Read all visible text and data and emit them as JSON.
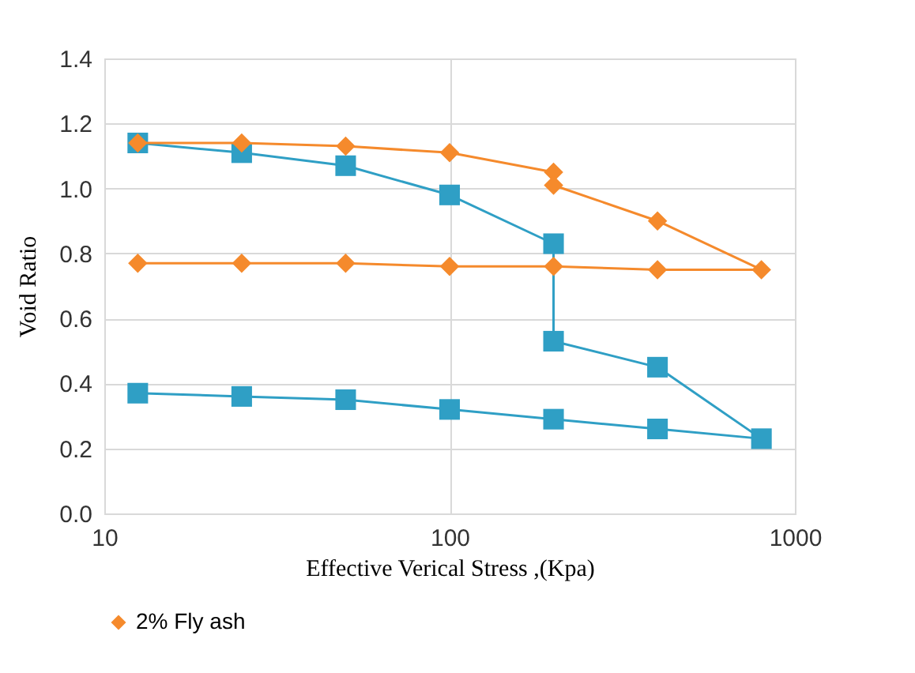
{
  "chart_data": {
    "type": "line",
    "xlabel": "Effective Verical Stress ,(Kpa)",
    "ylabel": "Void Ratio",
    "log": "x",
    "xlim": [
      10,
      1000
    ],
    "xticks": [
      10,
      100,
      1000
    ],
    "ylim": [
      0,
      1.4
    ],
    "yticks": [
      {
        "value": 0,
        "label": "0.0"
      },
      0.2,
      0.4,
      0.6,
      0.8,
      {
        "value": 1,
        "label": "1.0"
      },
      1.2,
      1.4
    ],
    "grid": true,
    "legend": "bottom",
    "series": [
      {
        "color": "#2f9fc5",
        "marker": "square",
        "x": [
          12.5,
          25,
          50,
          100,
          200,
          200,
          400,
          800,
          400,
          200,
          100,
          50,
          25,
          12.5
        ],
        "values": [
          1.14,
          1.11,
          1.07,
          0.98,
          0.83,
          0.53,
          0.45,
          0.23,
          0.26,
          0.29,
          0.32,
          0.35,
          0.36,
          0.37
        ]
      },
      {
        "name": "2% Fly ash",
        "color": "#f58a2c",
        "marker": "diamond",
        "x": [
          12.5,
          25,
          50,
          100,
          200,
          200,
          400,
          800,
          400,
          200,
          100,
          50,
          25,
          12.5
        ],
        "values": [
          1.14,
          1.14,
          1.13,
          1.11,
          1.05,
          1.01,
          0.9,
          0.75,
          0.75,
          0.76,
          0.76,
          0.77,
          0.77,
          0.77
        ]
      }
    ]
  }
}
